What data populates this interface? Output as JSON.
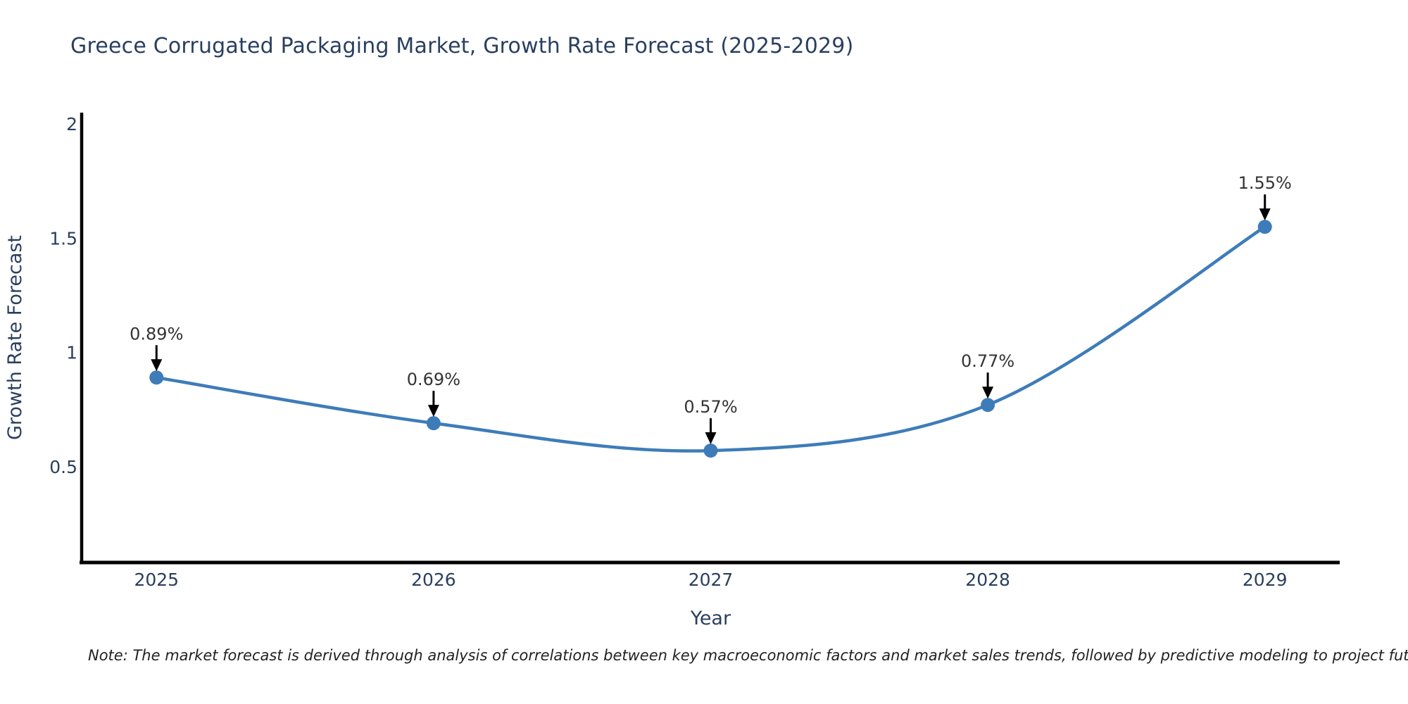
{
  "title": "Greece Corrugated Packaging Market, Growth Rate Forecast (2025-2029)",
  "note": "Note: The market forecast is derived through analysis of correlations between key macroeconomic factors and market sales trends, followed by predictive modeling to project future sales",
  "chart_data": {
    "type": "line",
    "title": "Greece Corrugated Packaging Market, Growth Rate Forecast (2025-2029)",
    "xlabel": "Year",
    "ylabel": "Growth Rate Forecast",
    "x": [
      2025,
      2026,
      2027,
      2028,
      2029
    ],
    "values": [
      0.89,
      0.69,
      0.57,
      0.77,
      1.55
    ],
    "point_labels": [
      "0.89%",
      "0.69%",
      "0.57%",
      "0.77%",
      "1.55%"
    ],
    "xtick_labels": [
      "2025",
      "2026",
      "2027",
      "2028",
      "2029"
    ],
    "yticks": [
      0.5,
      1,
      1.5,
      2
    ],
    "ytick_labels": [
      "0.5",
      "1",
      "1.5",
      "2"
    ],
    "xlim": [
      2024.73,
      2029.27
    ],
    "ylim": [
      0.08,
      2.05
    ],
    "grid": false,
    "legend": false,
    "line_shape": "spline",
    "marker": "circle",
    "colors": {
      "line": "#3e7cb9",
      "marker": "#3e7cb9",
      "axis": "#000000",
      "tick_text": "#2a3f5f",
      "axis_title_text": "#2a3f5f",
      "annotation_arrow": "#000000",
      "point_label_text": "#333333"
    }
  }
}
